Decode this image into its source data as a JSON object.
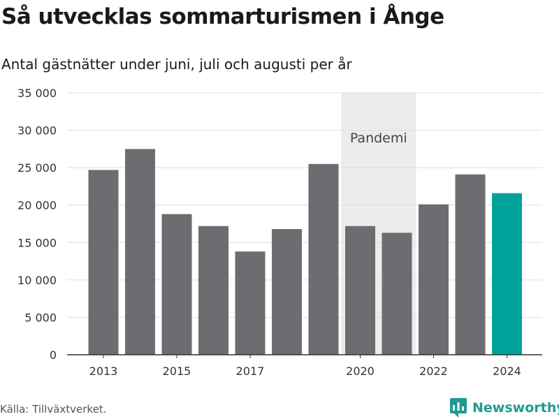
{
  "title": "Så utvecklas sommarturismen i Ånge",
  "subtitle": "Antal gästnätter under juni, juli och augusti per år",
  "source": "Källa: Tillväxtverket.",
  "brand": "Newsworthy",
  "colors": {
    "bar": "#6d6c71",
    "highlight": "#00a39a",
    "band": "#ececec",
    "grid": "#dddddd",
    "axis": "#333333",
    "brand": "#1f9b8f"
  },
  "chart_data": {
    "type": "bar",
    "categories": [
      "2013",
      "2014",
      "2015",
      "2016",
      "2017",
      "2018",
      "2019",
      "2020",
      "2021",
      "2022",
      "2023",
      "2024"
    ],
    "values": [
      24700,
      27500,
      18800,
      17200,
      13800,
      16800,
      25500,
      17200,
      16300,
      20100,
      24100,
      21600
    ],
    "highlight_category": "2024",
    "x_tick_labels": [
      "2013",
      "2015",
      "2017",
      "2020",
      "2022",
      "2024"
    ],
    "y_ticks": [
      0,
      5000,
      10000,
      15000,
      20000,
      25000,
      30000,
      35000
    ],
    "y_tick_labels": [
      "0",
      "5 000",
      "10 000",
      "15 000",
      "20 000",
      "25 000",
      "30 000",
      "35 000"
    ],
    "ylim": [
      0,
      35000
    ],
    "annotation": {
      "label": "Pandemi",
      "from": "2020",
      "to": "2021"
    },
    "grid": true,
    "xlabel": "",
    "ylabel": ""
  }
}
